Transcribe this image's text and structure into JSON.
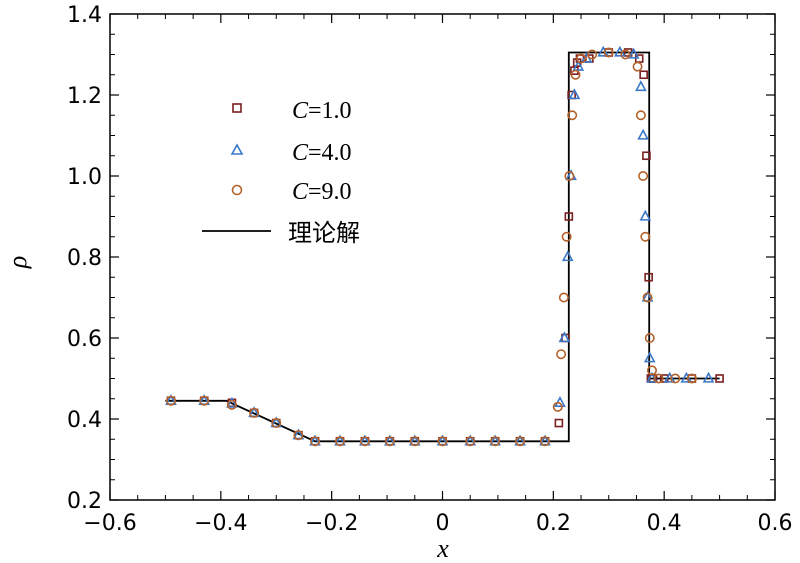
{
  "chart_data": {
    "type": "line+scatter",
    "title": "",
    "xlabel": "x",
    "ylabel": "ρ",
    "xlim": [
      -0.6,
      0.6
    ],
    "ylim": [
      0.2,
      1.4
    ],
    "xticks": [
      "−0.6",
      "−0.4",
      "−0.2",
      "0",
      "0.2",
      "0.4",
      "0.6"
    ],
    "yticks": [
      "0.2",
      "0.4",
      "0.6",
      "0.8",
      "1.0",
      "1.2",
      "1.4"
    ],
    "legend_position": "upper-left",
    "series": [
      {
        "name": "C=1.0",
        "legend_symbol": "C",
        "legend_value": "=1.0",
        "marker": "square",
        "color": "#7a1f1f",
        "x": [
          -0.49,
          -0.43,
          -0.38,
          -0.34,
          -0.3,
          -0.26,
          -0.23,
          -0.185,
          -0.14,
          -0.095,
          -0.05,
          0.0,
          0.05,
          0.095,
          0.14,
          0.185,
          0.21,
          0.222,
          0.228,
          0.233,
          0.238,
          0.243,
          0.248,
          0.265,
          0.3,
          0.335,
          0.355,
          0.363,
          0.368,
          0.372,
          0.376,
          0.38,
          0.4,
          0.45,
          0.5
        ],
        "y": [
          0.445,
          0.445,
          0.44,
          0.415,
          0.39,
          0.36,
          0.345,
          0.345,
          0.345,
          0.345,
          0.345,
          0.345,
          0.345,
          0.345,
          0.345,
          0.345,
          0.39,
          0.6,
          0.9,
          1.2,
          1.26,
          1.28,
          1.29,
          1.29,
          1.305,
          1.305,
          1.29,
          1.25,
          1.05,
          0.75,
          0.5,
          0.5,
          0.5,
          0.5,
          0.5
        ]
      },
      {
        "name": "C=4.0",
        "legend_symbol": "C",
        "legend_value": "=4.0",
        "marker": "triangle",
        "color": "#3a78c8",
        "x": [
          -0.49,
          -0.43,
          -0.38,
          -0.34,
          -0.3,
          -0.26,
          -0.23,
          -0.185,
          -0.14,
          -0.095,
          -0.05,
          0.0,
          0.05,
          0.095,
          0.14,
          0.185,
          0.212,
          0.22,
          0.226,
          0.232,
          0.238,
          0.245,
          0.26,
          0.29,
          0.32,
          0.345,
          0.358,
          0.362,
          0.366,
          0.37,
          0.374,
          0.378,
          0.41,
          0.44,
          0.48
        ],
        "y": [
          0.445,
          0.445,
          0.438,
          0.415,
          0.39,
          0.36,
          0.345,
          0.345,
          0.345,
          0.345,
          0.345,
          0.345,
          0.345,
          0.345,
          0.345,
          0.345,
          0.44,
          0.6,
          0.8,
          1.0,
          1.2,
          1.27,
          1.29,
          1.305,
          1.305,
          1.3,
          1.22,
          1.1,
          0.9,
          0.7,
          0.55,
          0.5,
          0.5,
          0.5,
          0.5
        ]
      },
      {
        "name": "C=9.0",
        "legend_symbol": "C",
        "legend_value": "=9.0",
        "marker": "circle",
        "color": "#b5622a",
        "x": [
          -0.49,
          -0.43,
          -0.38,
          -0.34,
          -0.3,
          -0.26,
          -0.23,
          -0.185,
          -0.14,
          -0.095,
          -0.05,
          0.0,
          0.05,
          0.095,
          0.14,
          0.185,
          0.208,
          0.214,
          0.219,
          0.224,
          0.229,
          0.234,
          0.24,
          0.25,
          0.27,
          0.3,
          0.33,
          0.352,
          0.358,
          0.362,
          0.366,
          0.37,
          0.374,
          0.378,
          0.39,
          0.42,
          0.45
        ],
        "y": [
          0.445,
          0.445,
          0.435,
          0.415,
          0.39,
          0.36,
          0.345,
          0.345,
          0.345,
          0.345,
          0.345,
          0.345,
          0.345,
          0.345,
          0.345,
          0.345,
          0.43,
          0.56,
          0.7,
          0.85,
          1.0,
          1.15,
          1.25,
          1.29,
          1.3,
          1.305,
          1.3,
          1.27,
          1.15,
          1.0,
          0.85,
          0.7,
          0.6,
          0.52,
          0.5,
          0.5,
          0.5
        ]
      },
      {
        "name": "理论解",
        "legend_label": "理论解",
        "marker": "line",
        "color": "#000000",
        "x": [
          -0.5,
          -0.39,
          -0.23,
          0.228,
          0.228,
          0.373,
          0.373,
          0.5
        ],
        "y": [
          0.445,
          0.445,
          0.345,
          0.345,
          1.305,
          1.305,
          0.5,
          0.5
        ]
      }
    ]
  }
}
